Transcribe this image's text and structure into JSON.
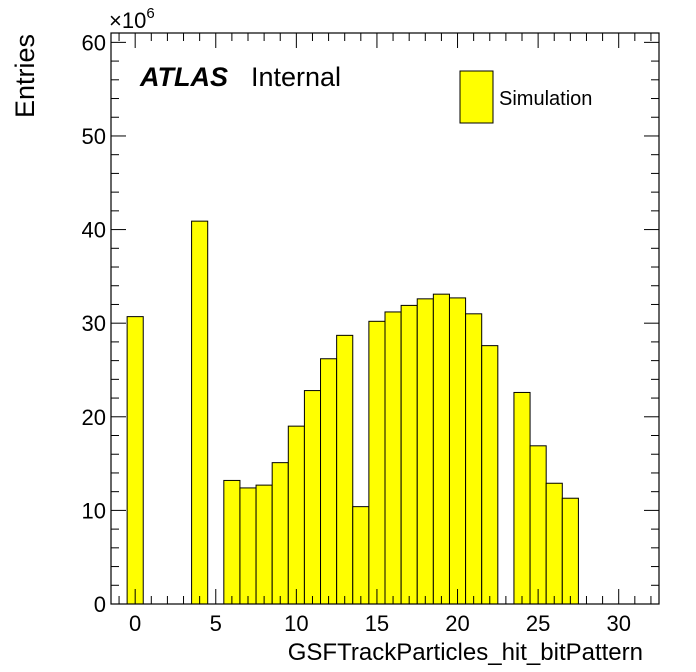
{
  "chart_data": {
    "type": "bar",
    "style": "histogram",
    "xlabel": "GSFTrackParticles_hit_bitPattern",
    "ylabel": "Entries",
    "y_multiplier_text": "×10",
    "y_multiplier_exp": "6",
    "atlas_label": "ATLAS",
    "atlas_sub": "Internal",
    "xlim": [
      -1.5,
      32.5
    ],
    "ylim": [
      0,
      61
    ],
    "xticks": [
      0,
      5,
      10,
      15,
      20,
      25,
      30
    ],
    "yticks": [
      0,
      10,
      20,
      30,
      40,
      50,
      60
    ],
    "bin_width": 1,
    "bin_centers": [
      0,
      1,
      2,
      3,
      4,
      5,
      6,
      7,
      8,
      9,
      10,
      11,
      12,
      13,
      14,
      15,
      16,
      17,
      18,
      19,
      20,
      21,
      22,
      23,
      24,
      25,
      26,
      27,
      28,
      29,
      30,
      31
    ],
    "series": [
      {
        "name": "Simulation",
        "color": "#ffff00",
        "values": [
          30.7,
          0,
          0,
          0,
          40.9,
          0,
          13.2,
          12.4,
          12.7,
          15.1,
          19.0,
          22.8,
          26.2,
          28.7,
          10.4,
          30.2,
          31.2,
          31.9,
          32.6,
          33.1,
          32.7,
          31.0,
          27.6,
          0,
          22.6,
          16.9,
          12.9,
          11.3,
          0,
          0,
          0,
          0
        ]
      }
    ],
    "legend_position": "top-right"
  }
}
